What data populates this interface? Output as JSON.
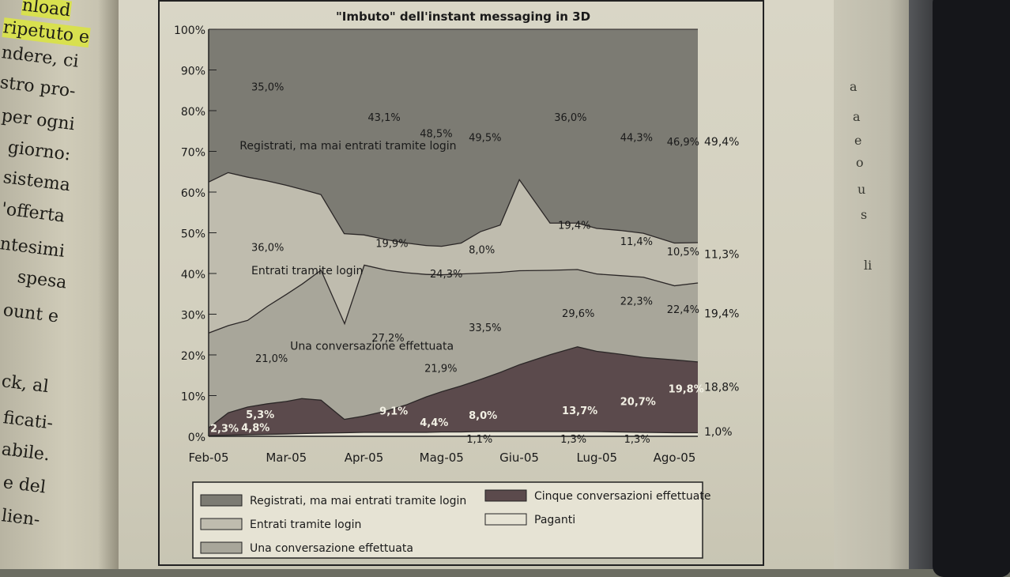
{
  "left_page": {
    "fragments": [
      "nload",
      "ripetuto e",
      "ndere, ci",
      "stro pro-",
      "per ogni",
      "giorno:",
      "sistema",
      "'offerta",
      "ntesimi",
      "spesa",
      "ount e",
      "ck, al",
      "ficati-",
      "abile.",
      "e del",
      "lien-"
    ]
  },
  "right_edge": {
    "fragments": [
      "a",
      "a",
      "e",
      "o",
      "u",
      "s",
      "li"
    ]
  },
  "chart_data": {
    "type": "area",
    "stacked": true,
    "title": "\"Imbuto\" dell'instant messaging in 3D",
    "categories": [
      "Feb-05",
      "Mar-05",
      "Apr-05",
      "Mag-05",
      "Giu-05",
      "Lug-05",
      "Ago-05"
    ],
    "x": [
      0,
      0.25,
      0.5,
      0.75,
      1,
      1.2,
      1.45,
      1.75,
      2,
      2.3,
      2.55,
      2.8,
      3,
      3.25,
      3.5,
      3.75,
      4,
      4.4,
      4.75,
      5,
      5.3,
      5.6,
      6,
      6.3
    ],
    "ylim": [
      0,
      100
    ],
    "yticks": [
      "0%",
      "10%",
      "20%",
      "30%",
      "40%",
      "50%",
      "60%",
      "70%",
      "80%",
      "90%",
      "100%"
    ],
    "series": [
      {
        "name": "Paganti",
        "values": [
          0.3,
          0.4,
          0.5,
          0.6,
          0.7,
          0.8,
          0.9,
          1.0,
          1.1,
          1.1,
          1.1,
          1.1,
          1.2,
          1.2,
          1.3,
          1.3,
          1.3,
          1.3,
          1.3,
          1.3,
          1.2,
          1.1,
          1.0,
          1.0
        ]
      },
      {
        "name": "Cinque conversazioni effettuate",
        "values": [
          1.9,
          5.5,
          6.8,
          7.5,
          8.0,
          8.6,
          8.1,
          3.3,
          4.0,
          5.3,
          6.8,
          8.7,
          9.9,
          11.3,
          12.8,
          14.5,
          16.4,
          18.9,
          20.8,
          19.7,
          19.1,
          18.4,
          17.9,
          17.4
        ]
      },
      {
        "name": "Una conversazione effettuata",
        "values": [
          23.3,
          21.4,
          21.3,
          23.9,
          26.3,
          28.1,
          32.0,
          23.7,
          37.1,
          34.5,
          32.4,
          30.1,
          28.7,
          27.5,
          26.1,
          24.6,
          23.1,
          20.7,
          19.0,
          19.0,
          19.3,
          19.7,
          18.2,
          19.4
        ]
      },
      {
        "name": "Entrati tramite login",
        "values": [
          37.1,
          37.6,
          35.2,
          30.9,
          26.8,
          23.3,
          18.5,
          21.9,
          7.4,
          7.5,
          7.3,
          7.1,
          7.0,
          7.6,
          10.2,
          11.6,
          22.5,
          11.6,
          11.4,
          11.2,
          11.1,
          10.8,
          10.5,
          9.9
        ]
      },
      {
        "name": "Registrati, ma mai entrati tramite login",
        "values": [
          37.4,
          35.1,
          36.2,
          37.1,
          38.2,
          39.2,
          40.5,
          50.1,
          50.4,
          51.6,
          52.4,
          53.0,
          53.2,
          52.4,
          49.6,
          48.0,
          36.7,
          47.5,
          47.5,
          48.8,
          49.3,
          50.0,
          52.4,
          52.3
        ]
      }
    ],
    "colors": {
      "Registrati, ma mai entrati tramite login": "#7c7b73",
      "Entrati tramite login": "#bfbcae",
      "Una conversazione effettuata": "#a8a69a",
      "Cinque conversazioni effettuate": "#5b4a4c",
      "Paganti": "#e6e3d4"
    },
    "annotations": [
      {
        "text": "35,0%",
        "x": 0.55,
        "y": 85,
        "color": "#1a1a1a"
      },
      {
        "text": "43,1%",
        "x": 2.05,
        "y": 77.5,
        "color": "#1a1a1a"
      },
      {
        "text": "48,5%",
        "x": 2.72,
        "y": 73.5,
        "color": "#1a1a1a"
      },
      {
        "text": "49,5%",
        "x": 3.35,
        "y": 72.5,
        "color": "#1a1a1a"
      },
      {
        "text": "36,0%",
        "x": 4.45,
        "y": 77.5,
        "color": "#1a1a1a"
      },
      {
        "text": "44,3%",
        "x": 5.3,
        "y": 72.5,
        "color": "#1a1a1a"
      },
      {
        "text": "46,9%",
        "x": 5.9,
        "y": 71.5,
        "color": "#1a1a1a"
      },
      {
        "text": "36,0%",
        "x": 0.55,
        "y": 45.5,
        "color": "#1a1a1a"
      },
      {
        "text": "19,9%",
        "x": 2.15,
        "y": 46.5,
        "color": "#1a1a1a"
      },
      {
        "text": "8,0%",
        "x": 3.35,
        "y": 45,
        "color": "#1a1a1a"
      },
      {
        "text": "19,4%",
        "x": 4.5,
        "y": 51,
        "color": "#1a1a1a"
      },
      {
        "text": "11,4%",
        "x": 5.3,
        "y": 47,
        "color": "#1a1a1a"
      },
      {
        "text": "10,5%",
        "x": 5.9,
        "y": 44.5,
        "color": "#1a1a1a"
      },
      {
        "text": "24,3%",
        "x": 2.85,
        "y": 39,
        "color": "#1a1a1a"
      },
      {
        "text": "27,2%",
        "x": 2.1,
        "y": 23.3,
        "color": "#1a1a1a"
      },
      {
        "text": "33,5%",
        "x": 3.35,
        "y": 25.8,
        "color": "#1a1a1a"
      },
      {
        "text": "21,9%",
        "x": 2.78,
        "y": 15.8,
        "color": "#1a1a1a"
      },
      {
        "text": "21,0%",
        "x": 0.6,
        "y": 18.3,
        "color": "#1a1a1a"
      },
      {
        "text": "29,6%",
        "x": 4.55,
        "y": 29.3,
        "color": "#1a1a1a"
      },
      {
        "text": "22,3%",
        "x": 5.3,
        "y": 32.3,
        "color": "#1a1a1a"
      },
      {
        "text": "22,4%",
        "x": 5.9,
        "y": 30.3,
        "color": "#1a1a1a"
      },
      {
        "text": "5,3%",
        "x": 0.48,
        "y": 4.5,
        "color": "#f2f0e4"
      },
      {
        "text": "9,1%",
        "x": 2.2,
        "y": 5.3,
        "color": "#f2f0e4"
      },
      {
        "text": "4,4%",
        "x": 2.72,
        "y": 2.5,
        "color": "#f2f0e4"
      },
      {
        "text": "8,0%",
        "x": 3.35,
        "y": 4.3,
        "color": "#f2f0e4"
      },
      {
        "text": "13,7%",
        "x": 4.55,
        "y": 5.4,
        "color": "#f2f0e4"
      },
      {
        "text": "20,7%",
        "x": 5.3,
        "y": 7.7,
        "color": "#f2f0e4"
      },
      {
        "text": "19,8%",
        "x": 5.92,
        "y": 10.8,
        "color": "#f2f0e4"
      },
      {
        "text": "2,3%",
        "x": 0.02,
        "y": 1.1,
        "color": "#f2f0e4"
      },
      {
        "text": "4,8%",
        "x": 0.42,
        "y": 1.3,
        "color": "#f2f0e4"
      },
      {
        "text": "1,1%",
        "x": 3.32,
        "y": -1.6,
        "color": "#1a1a1a"
      },
      {
        "text": "1,3%",
        "x": 4.53,
        "y": -1.6,
        "color": "#1a1a1a"
      },
      {
        "text": "1,3%",
        "x": 5.35,
        "y": -1.6,
        "color": "#1a1a1a"
      },
      {
        "text": "Registrati, ma mai entrati tramite login",
        "x": 0.4,
        "y": 70.5,
        "color": "#1a1a1a"
      },
      {
        "text": "Entrati tramite login",
        "x": 0.55,
        "y": 39.8,
        "color": "#1a1a1a"
      },
      {
        "text": "Una conversazione effettuata",
        "x": 1.05,
        "y": 21.3,
        "color": "#1a1a1a"
      }
    ],
    "end_labels": [
      {
        "text": "49,4%",
        "y": 71.5
      },
      {
        "text": "11,3%",
        "y": 43.8
      },
      {
        "text": "19,4%",
        "y": 29.2
      },
      {
        "text": "18,8%",
        "y": 11.2
      },
      {
        "text": "1,0%",
        "y": 0.2
      }
    ],
    "legend": {
      "placement": "bottom",
      "items": [
        {
          "label": "Registrati, ma mai entrati tramite login",
          "color": "#7c7b73"
        },
        {
          "label": "Cinque conversazioni effettuate",
          "color": "#5b4a4c"
        },
        {
          "label": "Entrati tramite login",
          "color": "#bfbcae"
        },
        {
          "label": "Paganti",
          "color": "#e6e3d4"
        },
        {
          "label": "Una conversazione effettuata",
          "color": "#a8a69a"
        }
      ]
    }
  }
}
